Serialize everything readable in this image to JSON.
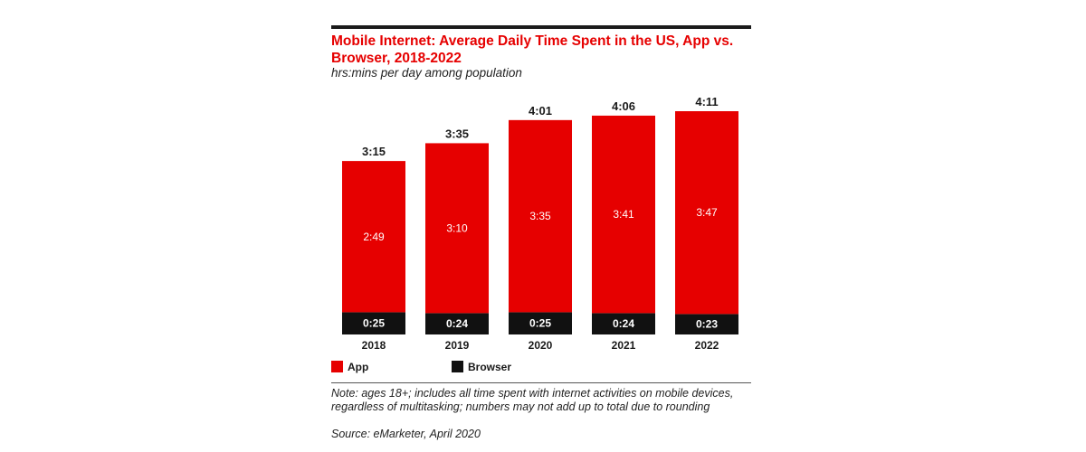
{
  "title": "Mobile Internet: Average Daily Time Spent in the US, App vs. Browser, 2018-2022",
  "subtitle": "hrs:mins per day among population",
  "note": "Note: ages 18+; includes all time spent with internet activities on mobile devices, regardless of multitasking; numbers may not add up to total due to rounding",
  "source": "Source: eMarketer, April 2020",
  "colors": {
    "app": "#e60000",
    "browser": "#111111",
    "title": "#e60000"
  },
  "chart_data": {
    "type": "bar",
    "stacked": true,
    "categories": [
      "2018",
      "2019",
      "2020",
      "2021",
      "2022"
    ],
    "series": [
      {
        "name": "Browser",
        "values": [
          25,
          24,
          25,
          24,
          23
        ],
        "labels": [
          "0:25",
          "0:24",
          "0:25",
          "0:24",
          "0:23"
        ]
      },
      {
        "name": "App",
        "values": [
          169,
          190,
          215,
          221,
          227
        ],
        "labels": [
          "2:49",
          "3:10",
          "3:35",
          "3:41",
          "3:47"
        ]
      }
    ],
    "totals": [
      195,
      215,
      241,
      246,
      251
    ],
    "total_labels": [
      "3:15",
      "3:35",
      "4:01",
      "4:06",
      "4:11"
    ],
    "unit": "minutes per day",
    "ylim": [
      0,
      251
    ],
    "legend_position": "bottom-left"
  }
}
